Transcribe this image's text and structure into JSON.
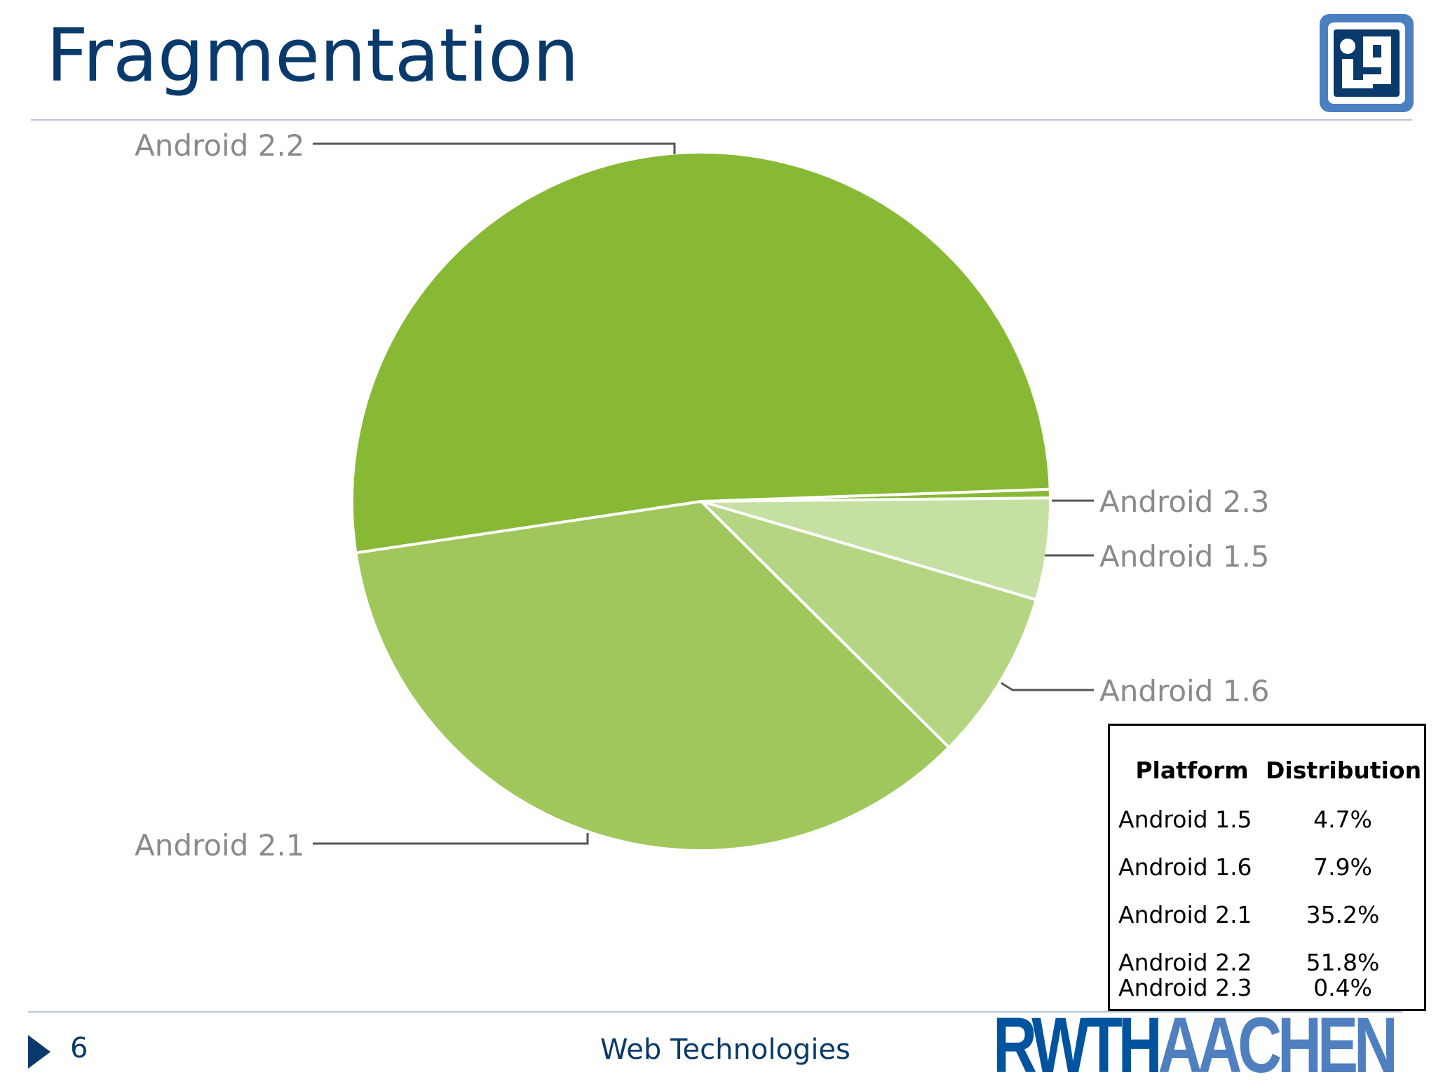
{
  "slide": {
    "title": "Fragmentation",
    "page_number": "6",
    "footer_title": "Web Technologies",
    "logo_rwth": "RWTH",
    "logo_aachen": "AACHEN"
  },
  "colors": {
    "title": "#0a3a6b",
    "rule": "#b7c4d6",
    "label": "#8a8a8a",
    "leader": "#555555",
    "android_2_2": "#87b935",
    "android_2_1": "#a0c75c",
    "android_1_6": "#b4d582",
    "android_1_5": "#c6e0a3",
    "android_2_3": "#87b935"
  },
  "chart_data": {
    "type": "pie",
    "title": "",
    "slices": [
      {
        "name": "Android 2.3",
        "value": 0.4
      },
      {
        "name": "Android 1.5",
        "value": 4.7
      },
      {
        "name": "Android 1.6",
        "value": 7.9
      },
      {
        "name": "Android 2.1",
        "value": 35.2
      },
      {
        "name": "Android 2.2",
        "value": 51.8
      }
    ]
  },
  "table": {
    "headers": [
      "Platform",
      "Distribution"
    ],
    "rows": [
      {
        "platform": "Android 1.5",
        "distribution": "4.7%"
      },
      {
        "platform": "Android 1.6",
        "distribution": "7.9%"
      },
      {
        "platform": "Android 2.1",
        "distribution": "35.2%"
      },
      {
        "platform": "Android 2.2",
        "distribution": "51.8%"
      },
      {
        "platform": "Android 2.3",
        "distribution": "0.4%"
      }
    ]
  }
}
